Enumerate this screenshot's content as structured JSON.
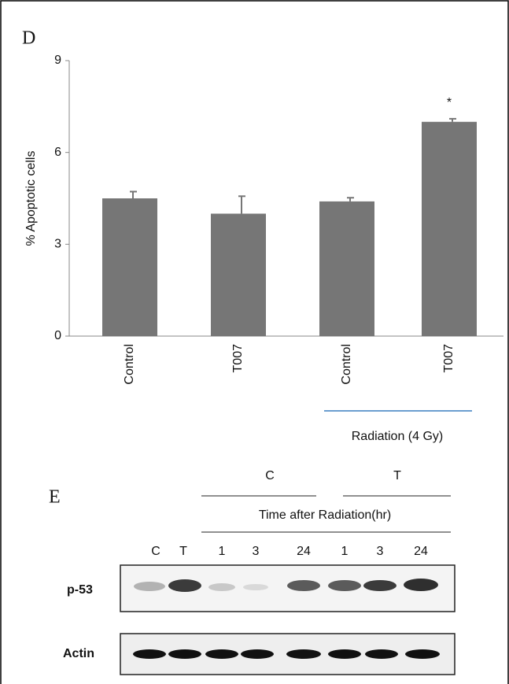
{
  "panels": {
    "d": "D",
    "e": "E"
  },
  "chart_data": {
    "type": "bar",
    "ylabel": "% Apoptotic cells",
    "categories": [
      "Control",
      "T007",
      "Control",
      "T007"
    ],
    "values": [
      4.5,
      4.0,
      4.4,
      7.0
    ],
    "errors": [
      0.22,
      0.57,
      0.12,
      0.1
    ],
    "significance": [
      null,
      null,
      null,
      "*"
    ],
    "group_label": "Radiation (4 Gy)",
    "color": "#767676",
    "ylim": [
      0,
      9
    ],
    "yticks": [
      0,
      3,
      6,
      9
    ],
    "grid": false
  },
  "blot": {
    "conditions": [
      "C",
      "T"
    ],
    "header": "Time after Radiation(hr)",
    "lanes": [
      "C",
      "T",
      "1",
      "3",
      "24",
      "1",
      "3",
      "24"
    ],
    "rows": [
      "p-53",
      "Actin"
    ]
  }
}
